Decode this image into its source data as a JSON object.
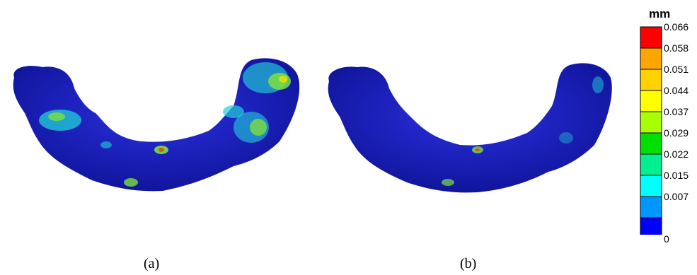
{
  "panels": [
    {
      "caption": "(a)"
    },
    {
      "caption": "(b)"
    }
  ],
  "legend": {
    "unit": "mm",
    "ticks": [
      "0.066",
      "0.058",
      "0.051",
      "0.044",
      "0.037",
      "0.029",
      "0.022",
      "0.015",
      "0.007",
      "0"
    ],
    "colors": [
      "#ff0000",
      "#ffa500",
      "#ffd200",
      "#ffff00",
      "#a8ff00",
      "#00e000",
      "#00f090",
      "#00ffff",
      "#0096ff",
      "#0000ff"
    ]
  },
  "colors": {
    "body": "#1a1fc8",
    "body_dark": "#0b0f7a",
    "hot_cyan": "#22d0d8",
    "hot_green": "#7de040",
    "hot_yellow": "#e0e000"
  }
}
